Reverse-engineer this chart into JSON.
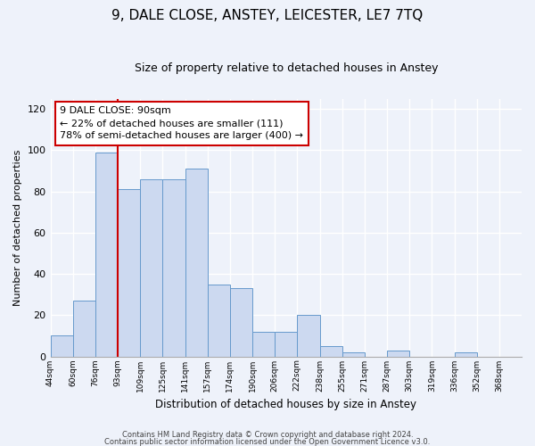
{
  "title": "9, DALE CLOSE, ANSTEY, LEICESTER, LE7 7TQ",
  "subtitle": "Size of property relative to detached houses in Anstey",
  "xlabel": "Distribution of detached houses by size in Anstey",
  "ylabel": "Number of detached properties",
  "bar_values": [
    10,
    27,
    99,
    81,
    86,
    86,
    91,
    35,
    33,
    12,
    12,
    20,
    5,
    2,
    0,
    3,
    0,
    0,
    2,
    0,
    0
  ],
  "bin_labels": [
    "44sqm",
    "60sqm",
    "76sqm",
    "93sqm",
    "109sqm",
    "125sqm",
    "141sqm",
    "157sqm",
    "174sqm",
    "190sqm",
    "206sqm",
    "222sqm",
    "238sqm",
    "255sqm",
    "271sqm",
    "287sqm",
    "303sqm",
    "319sqm",
    "336sqm",
    "352sqm",
    "368sqm"
  ],
  "bar_color": "#ccd9f0",
  "bar_edge_color": "#6699cc",
  "vline_x": 3,
  "vline_color": "#cc0000",
  "ylim": [
    0,
    125
  ],
  "yticks": [
    0,
    20,
    40,
    60,
    80,
    100,
    120
  ],
  "annotation_line1": "9 DALE CLOSE: 90sqm",
  "annotation_line2": "← 22% of detached houses are smaller (111)",
  "annotation_line3": "78% of semi-detached houses are larger (400) →",
  "annotation_box_color": "#ffffff",
  "annotation_border_color": "#cc0000",
  "footer_line1": "Contains HM Land Registry data © Crown copyright and database right 2024.",
  "footer_line2": "Contains public sector information licensed under the Open Government Licence v3.0.",
  "background_color": "#eef2fa",
  "plot_background_color": "#eef2fa",
  "grid_color": "#ffffff",
  "title_fontsize": 11,
  "subtitle_fontsize": 9
}
